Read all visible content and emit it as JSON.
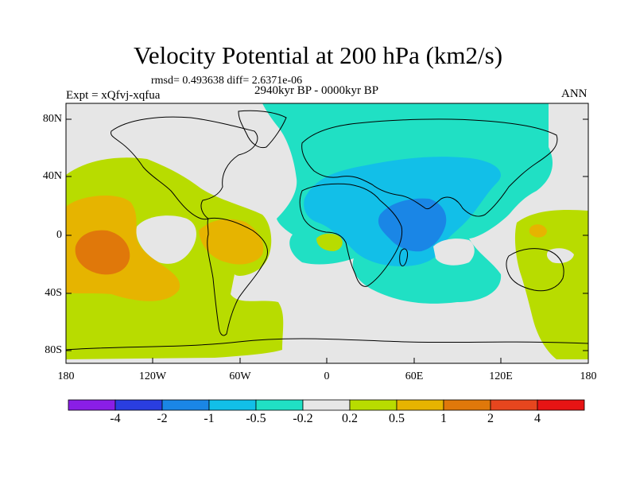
{
  "title": "Velocity Potential at 200 hPa (km2/s)",
  "stats": "rmsd= 0.493638 diff= 2.6371e-06",
  "period": "2940kyr BP - 0000kyr BP",
  "experiment": "Expt = xQfvj-xqfua",
  "season": "ANN",
  "lat_labels": [
    "80N",
    "40N",
    "0",
    "40S",
    "80S"
  ],
  "lon_labels": [
    "180",
    "120W",
    "60W",
    "0",
    "60E",
    "120E",
    "180"
  ],
  "colorbar": {
    "labels": [
      "-4",
      "-2",
      "-1",
      "-0.5",
      "-0.2",
      "0.2",
      "0.5",
      "1",
      "2",
      "4"
    ],
    "colors": [
      "#8a1ee6",
      "#2a3ee0",
      "#1a86e6",
      "#12bfe8",
      "#20e0c4",
      "#e6e6e6",
      "#b8dc00",
      "#e6b400",
      "#e0780a",
      "#e6461e",
      "#e61414"
    ]
  },
  "palette": {
    "ocean_neutral": "#e6e6e6",
    "pos_weak": "#b8dc00",
    "pos_mid": "#e6b400",
    "pos_strong": "#e0780a",
    "neg_weak": "#20e0c4",
    "neg_mid": "#12bfe8",
    "neg_strong": "#1a86e6",
    "coast": "#000000"
  }
}
